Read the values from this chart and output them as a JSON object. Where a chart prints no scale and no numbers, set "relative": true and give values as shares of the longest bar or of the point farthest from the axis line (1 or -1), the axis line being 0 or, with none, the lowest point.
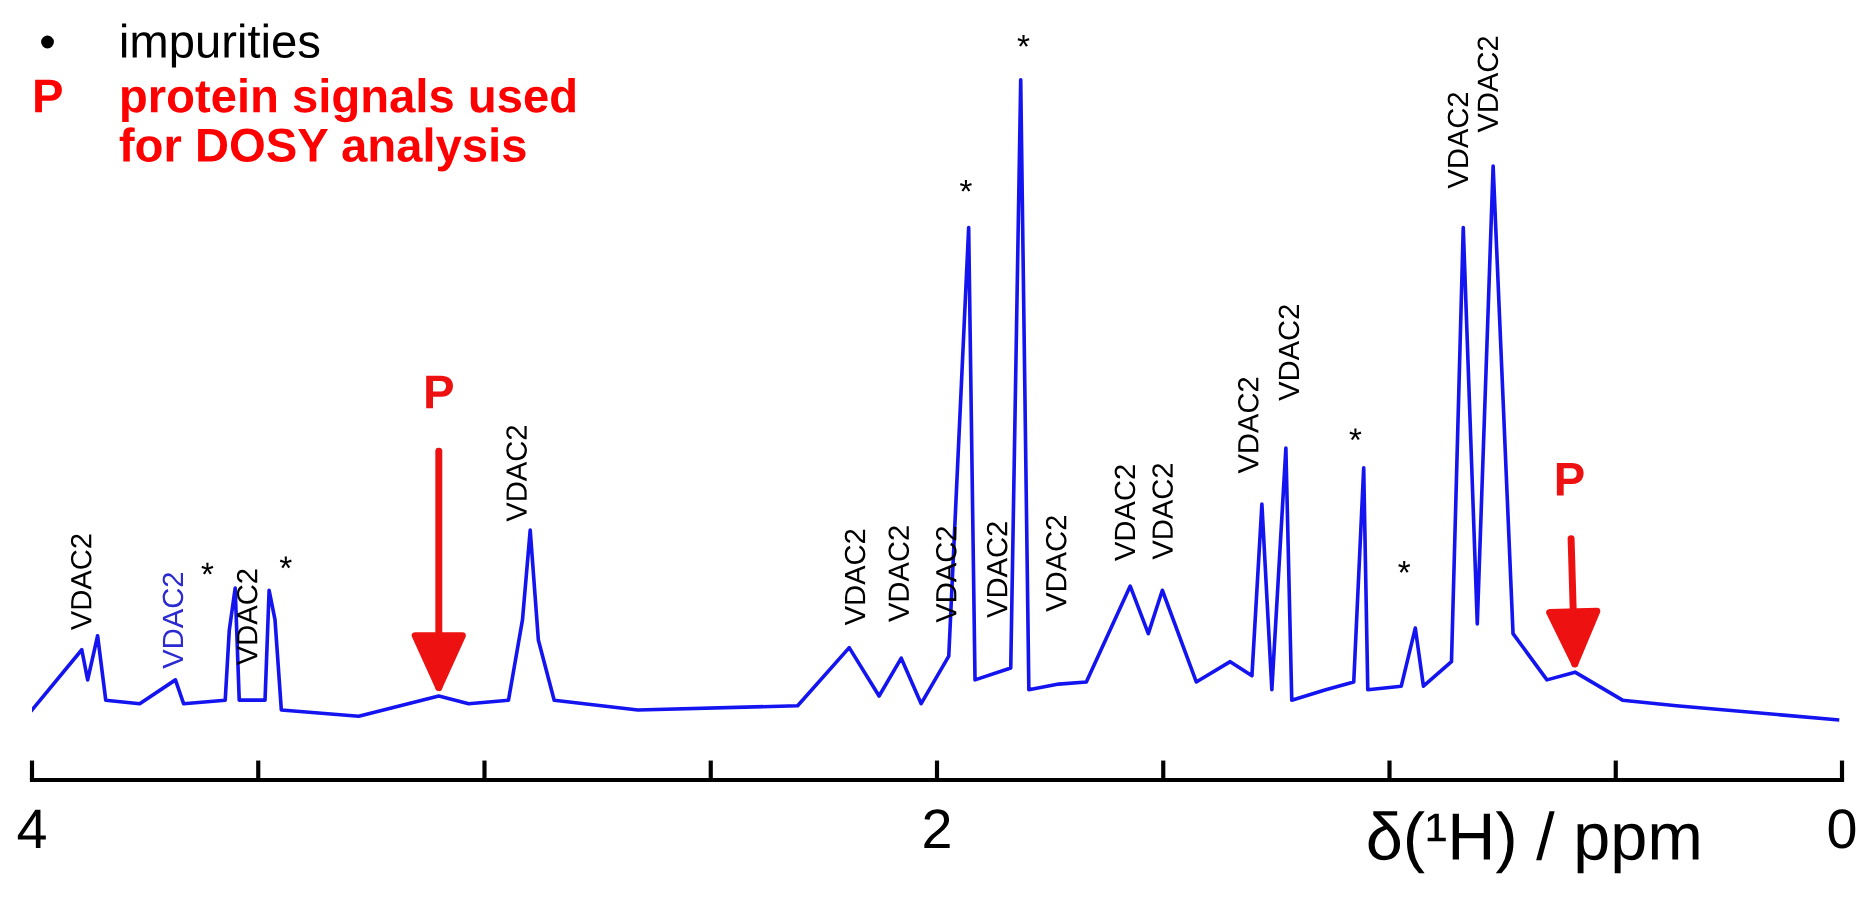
{
  "chart_data": {
    "type": "line",
    "relative": true,
    "xlabel": "δ(¹H) / ppm",
    "xlim": [
      4,
      0
    ],
    "xticks": [
      4,
      {
        "value": 3.5,
        "label": null
      },
      {
        "value": 3,
        "label": null
      },
      {
        "value": 2.5,
        "label": null
      },
      2,
      {
        "value": 1.5,
        "label": null
      },
      {
        "value": 1,
        "label": null
      },
      {
        "value": 0.5,
        "label": null
      },
      0
    ],
    "grid": false,
    "legend": false,
    "marker": "none",
    "line_style": "solid",
    "series": [
      {
        "color": "#1414f0",
        "x": [
          4.0,
          3.89,
          3.877,
          3.855,
          3.837,
          3.762,
          3.683,
          3.665,
          3.573,
          3.564,
          3.551,
          3.542,
          3.485,
          3.476,
          3.463,
          3.449,
          3.278,
          3.101,
          3.035,
          2.947,
          2.916,
          2.899,
          2.881,
          2.846,
          2.661,
          2.308,
          2.194,
          2.128,
          2.079,
          2.035,
          1.974,
          1.93,
          1.916,
          1.837,
          1.815,
          1.797,
          1.731,
          1.67,
          1.573,
          1.533,
          1.502,
          1.427,
          1.352,
          1.304,
          1.282,
          1.26,
          1.229,
          1.216,
          1.141,
          1.079,
          1.057,
          1.048,
          0.974,
          0.943,
          0.925,
          0.863,
          0.837,
          0.806,
          0.771,
          0.727,
          0.652,
          0.59,
          0.485,
          0.366,
          0.01
        ],
        "values": [
          0.1,
          0.186,
          0.143,
          0.206,
          0.114,
          0.109,
          0.143,
          0.109,
          0.114,
          0.214,
          0.274,
          0.114,
          0.114,
          0.271,
          0.229,
          0.1,
          0.091,
          0.12,
          0.109,
          0.114,
          0.229,
          0.357,
          0.2,
          0.114,
          0.1,
          0.106,
          0.189,
          0.12,
          0.174,
          0.109,
          0.177,
          0.789,
          0.143,
          0.16,
          1.0,
          0.129,
          0.137,
          0.14,
          0.277,
          0.209,
          0.271,
          0.14,
          0.169,
          0.149,
          0.394,
          0.129,
          0.474,
          0.114,
          0.129,
          0.14,
          0.446,
          0.129,
          0.134,
          0.217,
          0.134,
          0.169,
          0.789,
          0.223,
          0.877,
          0.209,
          0.143,
          0.154,
          0.114,
          0.106,
          0.086
        ]
      }
    ],
    "annotations": [
      "•",
      "impurities",
      "P",
      "protein signals used\nfor DOSY analysis",
      {
        "text": "VDAC2",
        "x": 3.855,
        "y": 0.206
      },
      {
        "text": "VDAC2",
        "x": 3.683,
        "y": 0.143
      },
      {
        "text": "VDAC2",
        "x": 3.476,
        "y": 0.271
      },
      {
        "text": "VDAC2",
        "x": 2.899,
        "y": 0.357
      },
      {
        "text": "VDAC2",
        "x": 2.194,
        "y": 0.189
      },
      {
        "text": "VDAC2",
        "x": 2.079,
        "y": 0.174
      },
      {
        "text": "VDAC2",
        "x": 1.974,
        "y": 0.177
      },
      {
        "text": "VDAC2",
        "x": 1.837,
        "y": 0.16
      },
      {
        "text": "VDAC2",
        "x": 1.731,
        "y": 0.137
      },
      {
        "text": "VDAC2",
        "x": 1.573,
        "y": 0.277
      },
      {
        "text": "VDAC2",
        "x": 1.502,
        "y": 0.271
      },
      {
        "text": "VDAC2",
        "x": 1.282,
        "y": 0.394
      },
      {
        "text": "VDAC2",
        "x": 1.229,
        "y": 0.474
      },
      {
        "text": "VDAC2",
        "x": 0.837,
        "y": 0.789
      },
      {
        "text": "VDAC2",
        "x": 0.771,
        "y": 0.877
      },
      {
        "text": "*",
        "x": 3.551,
        "y": 0.274
      },
      {
        "text": "*",
        "x": 3.476,
        "y": 0.271
      },
      {
        "text": "*",
        "x": 1.93,
        "y": 0.789
      },
      {
        "text": "*",
        "x": 1.815,
        "y": 1.0
      },
      {
        "text": "*",
        "x": 1.057,
        "y": 0.446
      },
      {
        "text": "*",
        "x": 0.943,
        "y": 0.217
      },
      {
        "text": "P",
        "x": 3.101,
        "y": 0.12
      },
      {
        "text": "P",
        "x": 0.59,
        "y": 0.154
      }
    ]
  }
}
